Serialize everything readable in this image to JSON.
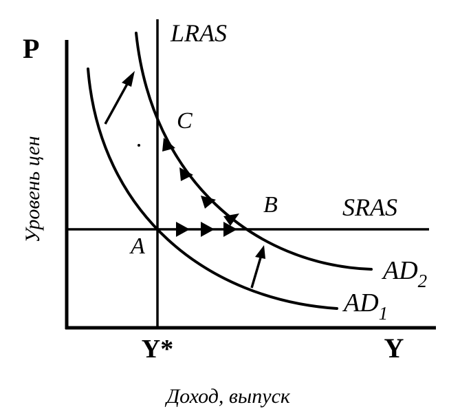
{
  "axes": {
    "y_axis_symbol": "P",
    "y_axis_label": "Уровень цен",
    "x_axis_symbol": "Y",
    "x_axis_label": "Доход, выпуск",
    "x_tick_label": "Y*"
  },
  "curves": {
    "lras": "LRAS",
    "sras": "SRAS",
    "ad1": {
      "base": "AD",
      "sub": "1"
    },
    "ad2": {
      "base": "AD",
      "sub": "2"
    }
  },
  "points": {
    "a": "A",
    "b": "B",
    "c": "C"
  },
  "arrows": {
    "along_sras_count": 3,
    "along_ad2_count": 4,
    "shift_arrows": 2
  }
}
